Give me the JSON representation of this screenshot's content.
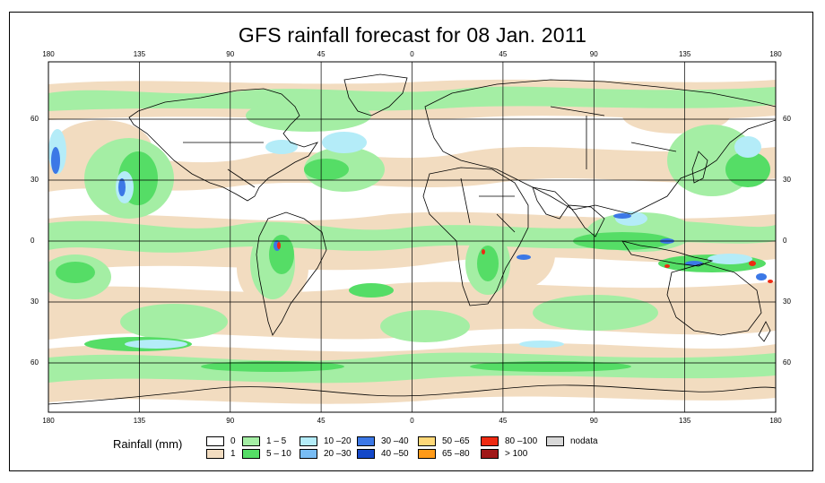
{
  "title": "GFS rainfall forecast for 08 Jan. 2011",
  "axes": {
    "x_ticks": [
      "180",
      "135",
      "90",
      "45",
      "0",
      "45",
      "90",
      "135",
      "180"
    ],
    "y_ticks": [
      "60",
      "30",
      "0",
      "30",
      "60"
    ]
  },
  "legend": {
    "label": "Rainfall (mm)",
    "items": [
      {
        "label": "0",
        "color": "#ffffff"
      },
      {
        "label": "1",
        "color": "#f2dcc0"
      },
      {
        "label": "1 – 5",
        "color": "#a4eea4"
      },
      {
        "label": "5 – 10",
        "color": "#55dd66"
      },
      {
        "label": "10 –20",
        "color": "#b4ecf8"
      },
      {
        "label": "20 –30",
        "color": "#78bcf4"
      },
      {
        "label": "30 –40",
        "color": "#3c78e6"
      },
      {
        "label": "40 –50",
        "color": "#1448c8"
      },
      {
        "label": "50 –65",
        "color": "#ffd878"
      },
      {
        "label": "65 –80",
        "color": "#ff9a18"
      },
      {
        "label": "80 –100",
        "color": "#ee2a12"
      },
      {
        "label": "> 100",
        "color": "#a01818"
      },
      {
        "label": "nodata",
        "color": "#d8d8d8"
      }
    ]
  }
}
